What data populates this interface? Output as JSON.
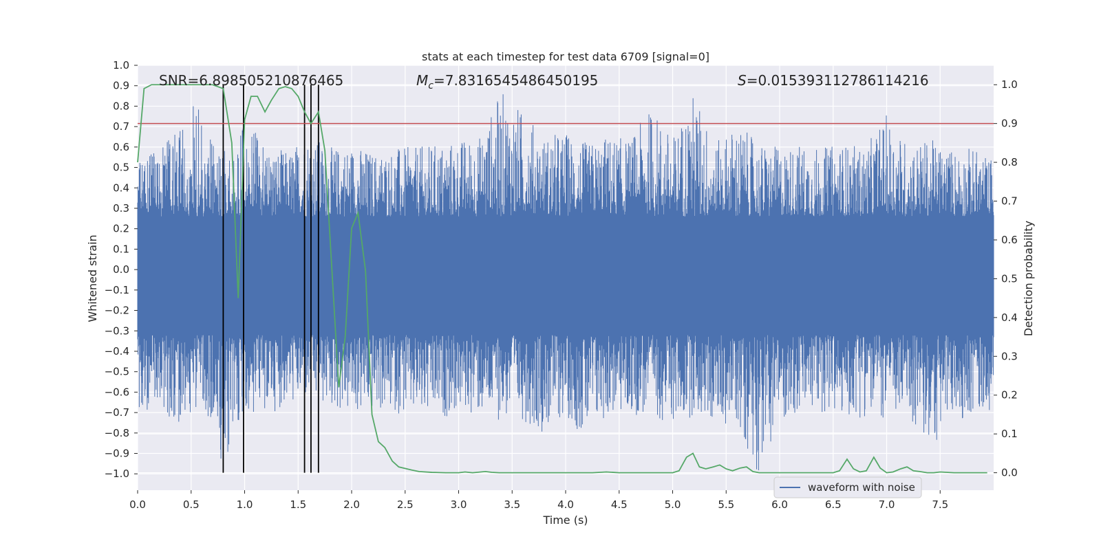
{
  "chart_data": {
    "type": "line",
    "title": "stats at each timestep for test data 6709 [signal=0]",
    "xlabel": "Time (s)",
    "ylabel": "Whitened strain",
    "y2label": "Detection probability",
    "xlim": [
      0,
      8
    ],
    "ylim": [
      -1.08,
      1.0
    ],
    "y2lim": [
      -0.045,
      1.05
    ],
    "grid": true,
    "legend_position": "bottom-right",
    "x_ticks": [
      "0.0",
      "0.5",
      "1.0",
      "1.5",
      "2.0",
      "2.5",
      "3.0",
      "3.5",
      "4.0",
      "4.5",
      "5.0",
      "5.5",
      "6.0",
      "6.5",
      "7.0",
      "7.5"
    ],
    "y_ticks": [
      "1.0",
      "0.9",
      "0.8",
      "0.7",
      "0.6",
      "0.5",
      "0.4",
      "0.3",
      "0.2",
      "0.1",
      "0.0",
      "-0.1",
      "-0.2",
      "-0.3",
      "-0.4",
      "-0.5",
      "-0.6",
      "-0.7",
      "-0.8",
      "-0.9",
      "-1.0"
    ],
    "y2_ticks": [
      "1.0",
      "0.9",
      "0.8",
      "0.7",
      "0.6",
      "0.5",
      "0.4",
      "0.3",
      "0.2",
      "0.1",
      "0.0"
    ],
    "annotations": {
      "snr": "SNR=6.898505210876465",
      "mc_symbol": "M",
      "mc_sub": "c",
      "mc_value": "=7.8316545486450195",
      "s_symbol": "S",
      "s_value": "=0.015393112786114216"
    },
    "threshold": 0.9,
    "vertical_lines_x": [
      0.8,
      0.99,
      1.56,
      1.62,
      1.69
    ],
    "series": [
      {
        "name": "waveform with noise",
        "color": "#4c72b0",
        "envelope_x": [
          0.0,
          0.2,
          0.4,
          0.6,
          0.8,
          1.0,
          1.2,
          1.4,
          1.6,
          1.8,
          2.0,
          2.2,
          2.4,
          2.6,
          2.8,
          3.0,
          3.2,
          3.4,
          3.6,
          3.8,
          4.0,
          4.2,
          4.4,
          4.6,
          4.8,
          5.0,
          5.2,
          5.4,
          5.6,
          5.8,
          6.0,
          6.2,
          6.4,
          6.6,
          6.8,
          7.0,
          7.2,
          7.4,
          7.6,
          7.8,
          8.0
        ],
        "envelope_upper": [
          0.55,
          0.62,
          0.68,
          0.88,
          0.6,
          0.72,
          0.62,
          0.58,
          0.68,
          0.6,
          0.62,
          0.58,
          0.6,
          0.6,
          0.62,
          0.64,
          0.66,
          0.88,
          0.78,
          0.66,
          0.68,
          0.62,
          0.66,
          0.64,
          0.8,
          0.65,
          0.88,
          0.62,
          0.72,
          0.62,
          0.6,
          0.62,
          0.6,
          0.62,
          0.6,
          0.76,
          0.62,
          0.64,
          0.6,
          0.6,
          0.55
        ],
        "envelope_lower": [
          -0.68,
          -0.7,
          -0.76,
          -0.64,
          -0.98,
          -0.72,
          -0.72,
          -0.66,
          -0.66,
          -0.68,
          -0.72,
          -0.7,
          -0.7,
          -0.74,
          -0.74,
          -0.7,
          -0.72,
          -0.74,
          -0.74,
          -0.8,
          -0.72,
          -0.84,
          -0.72,
          -0.72,
          -0.72,
          -0.76,
          -0.72,
          -0.76,
          -0.76,
          -1.0,
          -0.74,
          -0.72,
          -0.7,
          -0.74,
          -0.72,
          -0.74,
          -0.72,
          -0.9,
          -0.74,
          -0.72,
          -0.68
        ]
      },
      {
        "name": "",
        "color": "#55a868",
        "axis": "right",
        "x": [
          0.0,
          0.06,
          0.13,
          0.25,
          0.5,
          0.7,
          0.8,
          0.88,
          0.94,
          1.0,
          1.06,
          1.12,
          1.19,
          1.25,
          1.32,
          1.38,
          1.44,
          1.5,
          1.56,
          1.62,
          1.69,
          1.75,
          1.81,
          1.88,
          1.94,
          2.0,
          2.06,
          2.13,
          2.19,
          2.25,
          2.31,
          2.38,
          2.44,
          2.56,
          2.63,
          2.75,
          2.88,
          3.0,
          3.06,
          3.13,
          3.25,
          3.31,
          3.38,
          3.5,
          3.75,
          4.0,
          4.25,
          4.38,
          4.5,
          4.75,
          5.0,
          5.06,
          5.13,
          5.19,
          5.25,
          5.31,
          5.38,
          5.44,
          5.5,
          5.56,
          5.63,
          5.69,
          5.75,
          5.81,
          6.0,
          6.25,
          6.5,
          6.56,
          6.63,
          6.69,
          6.75,
          6.81,
          6.88,
          6.94,
          7.0,
          7.06,
          7.13,
          7.19,
          7.25,
          7.31,
          7.38,
          7.44,
          7.5,
          7.63,
          7.75,
          7.94
        ],
        "y": [
          0.8,
          0.99,
          1.0,
          1.0,
          1.0,
          1.0,
          0.99,
          0.85,
          0.45,
          0.91,
          0.97,
          0.97,
          0.93,
          0.96,
          0.99,
          0.995,
          0.99,
          0.97,
          0.93,
          0.9,
          0.93,
          0.83,
          0.55,
          0.22,
          0.35,
          0.63,
          0.67,
          0.52,
          0.15,
          0.08,
          0.065,
          0.03,
          0.015,
          0.007,
          0.003,
          0.001,
          0.0,
          0.0,
          0.002,
          0.0,
          0.003,
          0.001,
          0.0,
          0.0,
          0.0,
          0.0,
          0.0,
          0.002,
          0.0,
          0.0,
          0.0,
          0.005,
          0.04,
          0.05,
          0.015,
          0.01,
          0.015,
          0.02,
          0.01,
          0.005,
          0.012,
          0.015,
          0.003,
          0.0,
          0.0,
          0.0,
          0.0,
          0.005,
          0.035,
          0.01,
          0.002,
          0.005,
          0.04,
          0.012,
          0.0,
          0.002,
          0.01,
          0.015,
          0.005,
          0.003,
          0.0,
          0.0,
          0.002,
          0.0,
          0.0,
          0.0
        ]
      }
    ]
  },
  "legend": {
    "waveform_label": "waveform with noise"
  }
}
